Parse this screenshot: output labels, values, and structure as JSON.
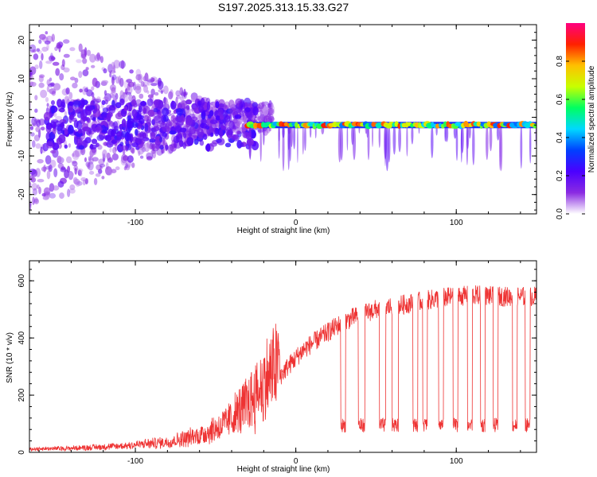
{
  "title": "S197.2025.313.15.33.G27",
  "chart_data": [
    {
      "type": "heatmap",
      "title": "S197.2025.313.15.33.G27",
      "xlabel": "Height of straight line (km)",
      "ylabel": "Frequency (Hz)",
      "xlim": [
        -166,
        150
      ],
      "ylim": [
        -25,
        24
      ],
      "xticks": [
        "-100",
        "0",
        "100"
      ],
      "xtick_values": [
        -100,
        0,
        100
      ],
      "yticks": [
        "20",
        "10",
        "0",
        "-10",
        "-20"
      ],
      "ytick_values": [
        20,
        10,
        0,
        -10,
        -20
      ],
      "colorbar": {
        "label": "Normalized spectral amplitude",
        "range": [
          0,
          1
        ],
        "ticks": [
          "0.0",
          "0.2",
          "0.4",
          "0.6",
          "0.8"
        ],
        "tick_values": [
          0.0,
          0.2,
          0.4,
          0.6,
          0.8
        ],
        "colors": [
          "#ffffff",
          "#8a2be2",
          "#4b00ff",
          "#0040ff",
          "#00d8ff",
          "#00ff60",
          "#c8ff00",
          "#ffc000",
          "#ff2000",
          "#ff0080"
        ]
      },
      "ridge_frequency_hz": -2,
      "ridge_start_km": -30,
      "noise_region_km": [
        -166,
        -30
      ]
    },
    {
      "type": "line",
      "xlabel": "Height of straight line (km)",
      "ylabel": "SNR (10 * v/v)",
      "xlim": [
        -166,
        150
      ],
      "ylim": [
        0,
        670
      ],
      "xticks": [
        "-100",
        "0",
        "100"
      ],
      "xtick_values": [
        -100,
        0,
        100
      ],
      "yticks": [
        "0",
        "200",
        "400",
        "600"
      ],
      "ytick_values": [
        0,
        200,
        400,
        600
      ],
      "color": "#ee3333",
      "trend_x": [
        -166,
        -140,
        -110,
        -80,
        -60,
        -45,
        -35,
        -25,
        -15,
        -5,
        5,
        15,
        25,
        35,
        50,
        70,
        90,
        110,
        130,
        150
      ],
      "trend_y": [
        10,
        12,
        18,
        30,
        50,
        80,
        120,
        170,
        230,
        300,
        360,
        400,
        440,
        470,
        500,
        520,
        540,
        550,
        545,
        545
      ],
      "dropout_ranges_km": [
        [
          28,
          31
        ],
        [
          39,
          43
        ],
        [
          52,
          56
        ],
        [
          60,
          64
        ],
        [
          73,
          76
        ],
        [
          79,
          82
        ],
        [
          89,
          92
        ],
        [
          98,
          101
        ],
        [
          107,
          110
        ],
        [
          115,
          118
        ],
        [
          123,
          126
        ],
        [
          135,
          138
        ],
        [
          143,
          146
        ]
      ]
    }
  ]
}
